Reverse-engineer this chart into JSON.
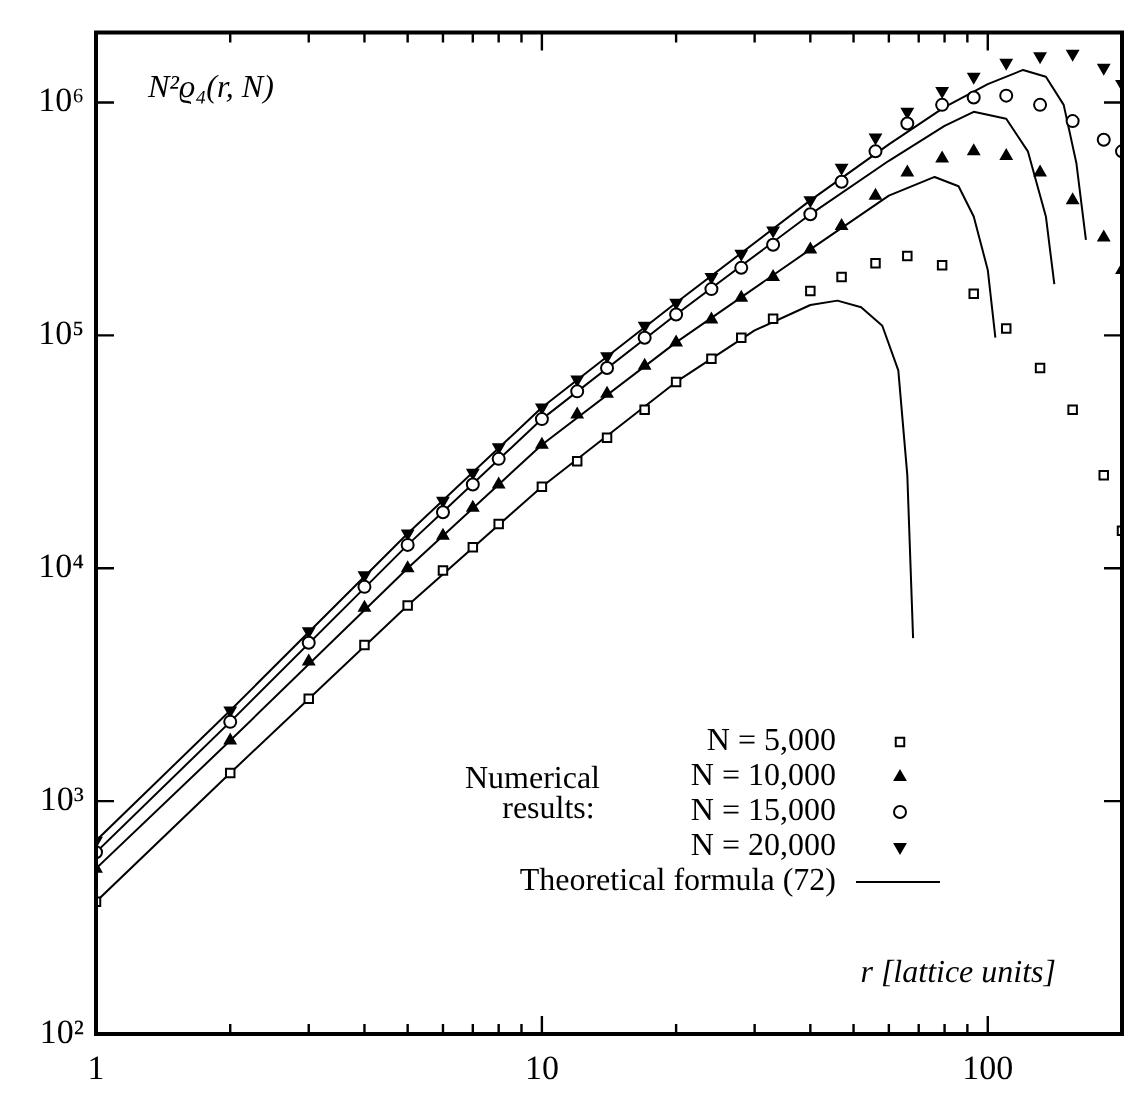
{
  "chart_data": {
    "type": "scatter",
    "ylabel": "N²ϱ₄(r, N)",
    "xlabel": "r [lattice units]",
    "legend_title": "Numerical results:",
    "legend": "bottom right",
    "log": "xy",
    "grid": false,
    "xlim": [
      1,
      200
    ],
    "ylim": [
      100,
      2000000
    ],
    "xticks": [
      1,
      {
        "value": 2,
        "label": null
      },
      {
        "value": 3,
        "label": null
      },
      {
        "value": 4,
        "label": null
      },
      {
        "value": 5,
        "label": null
      },
      {
        "value": 6,
        "label": null
      },
      {
        "value": 7,
        "label": null
      },
      {
        "value": 8,
        "label": null
      },
      {
        "value": 9,
        "label": null
      },
      10,
      {
        "value": 20,
        "label": null
      },
      {
        "value": 30,
        "label": null
      },
      {
        "value": 40,
        "label": null
      },
      {
        "value": 50,
        "label": null
      },
      {
        "value": 60,
        "label": null
      },
      {
        "value": 70,
        "label": null
      },
      {
        "value": 80,
        "label": null
      },
      {
        "value": 90,
        "label": null
      },
      100
    ],
    "yticks": [
      {
        "value": 100,
        "label": "10²"
      },
      {
        "value": 1000,
        "label": "10³"
      },
      {
        "value": 10000,
        "label": "10⁴"
      },
      {
        "value": 100000,
        "label": "10⁵"
      },
      {
        "value": 1000000,
        "label": "10⁶"
      }
    ],
    "series": [
      {
        "name": "N = 5,000",
        "type": "scatter",
        "marker": "square",
        "color": "#000000",
        "x": [
          1,
          2,
          3,
          4,
          5,
          6,
          7,
          8,
          10,
          12,
          14,
          17,
          20,
          24,
          28,
          33,
          40,
          47,
          56,
          66,
          79,
          93,
          110,
          131,
          155,
          182,
          200
        ],
        "values": [
          370,
          1320,
          2750,
          4680,
          6920,
          9770,
          12300,
          15500,
          22400,
          28800,
          36300,
          47900,
          63100,
          79400,
          97700,
          118000,
          155000,
          178000,
          204000,
          219000,
          200000,
          151000,
          107000,
          72400,
          47900,
          25100,
          14500
        ]
      },
      {
        "name": "N = 10,000",
        "type": "scatter",
        "marker": "triangle",
        "color": "#000000",
        "x": [
          1,
          2,
          3,
          4,
          5,
          6,
          7,
          8,
          10,
          12,
          14,
          17,
          20,
          24,
          28,
          33,
          40,
          47,
          56,
          66,
          79,
          93,
          110,
          131,
          155,
          182,
          200
        ],
        "values": [
          513,
          1820,
          3980,
          6760,
          10000,
          13800,
          18200,
          22900,
          33900,
          45700,
          56200,
          74100,
          93300,
          117000,
          145000,
          178000,
          234000,
          295000,
          398000,
          501000,
          575000,
          617000,
          589000,
          501000,
          380000,
          263000,
          191000
        ]
      },
      {
        "name": "N = 15,000",
        "type": "scatter",
        "marker": "circle",
        "color": "#000000",
        "x": [
          1,
          2,
          3,
          4,
          5,
          6,
          7,
          8,
          10,
          12,
          14,
          17,
          20,
          24,
          28,
          33,
          40,
          47,
          56,
          66,
          79,
          93,
          110,
          131,
          155,
          182,
          200
        ],
        "values": [
          603,
          2190,
          4790,
          8320,
          12600,
          17400,
          22900,
          29500,
          43700,
          57500,
          72400,
          97700,
          123000,
          158000,
          195000,
          245000,
          331000,
          457000,
          617000,
          813000,
          977000,
          1050000,
          1070000,
          977000,
          832000,
          692000,
          617000
        ]
      },
      {
        "name": "N = 20,000",
        "type": "scatter",
        "marker": "triangle-down",
        "color": "#000000",
        "x": [
          1,
          2,
          3,
          4,
          5,
          6,
          7,
          8,
          10,
          12,
          14,
          17,
          20,
          24,
          28,
          33,
          40,
          47,
          56,
          66,
          79,
          93,
          110,
          131,
          155,
          182,
          200
        ],
        "values": [
          676,
          2450,
          5370,
          9330,
          14100,
          19500,
          25700,
          33100,
          49000,
          64600,
          81300,
          110000,
          138000,
          178000,
          224000,
          282000,
          380000,
          525000,
          708000,
          912000,
          1120000,
          1290000,
          1480000,
          1580000,
          1620000,
          1410000,
          1200000
        ]
      },
      {
        "name": "Theoretical formula (72)",
        "type": "line",
        "marker": "none",
        "line_style": "solid",
        "color": "#000000",
        "x": [
          1,
          2,
          5,
          10,
          20,
          30,
          40,
          46,
          52,
          58,
          63,
          66,
          68
        ],
        "values": [
          370,
          1320,
          6920,
          22400,
          63100,
          105000,
          135000,
          141000,
          132000,
          110000,
          70800,
          25100,
          5010
        ]
      },
      {
        "type": "line",
        "marker": "none",
        "line_style": "solid",
        "color": "#000000",
        "x": [
          1,
          2,
          5,
          10,
          20,
          40,
          60,
          76,
          86,
          93,
          100,
          104
        ],
        "values": [
          513,
          1820,
          10000,
          33900,
          93300,
          234000,
          398000,
          479000,
          437000,
          324000,
          191000,
          97700
        ]
      },
      {
        "type": "line",
        "marker": "none",
        "line_style": "solid",
        "color": "#000000",
        "x": [
          1,
          2,
          5,
          10,
          20,
          40,
          60,
          80,
          93,
          110,
          123,
          135,
          141
        ],
        "values": [
          603,
          2190,
          12600,
          43700,
          123000,
          331000,
          562000,
          794000,
          912000,
          851000,
          617000,
          324000,
          166000
        ]
      },
      {
        "type": "line",
        "marker": "none",
        "line_style": "solid",
        "color": "#000000",
        "x": [
          1,
          2,
          5,
          10,
          20,
          40,
          60,
          80,
          100,
          120,
          135,
          148,
          158,
          166
        ],
        "values": [
          676,
          2450,
          14100,
          49000,
          138000,
          380000,
          661000,
          955000,
          1200000,
          1380000,
          1290000,
          977000,
          550000,
          257000
        ]
      }
    ]
  }
}
